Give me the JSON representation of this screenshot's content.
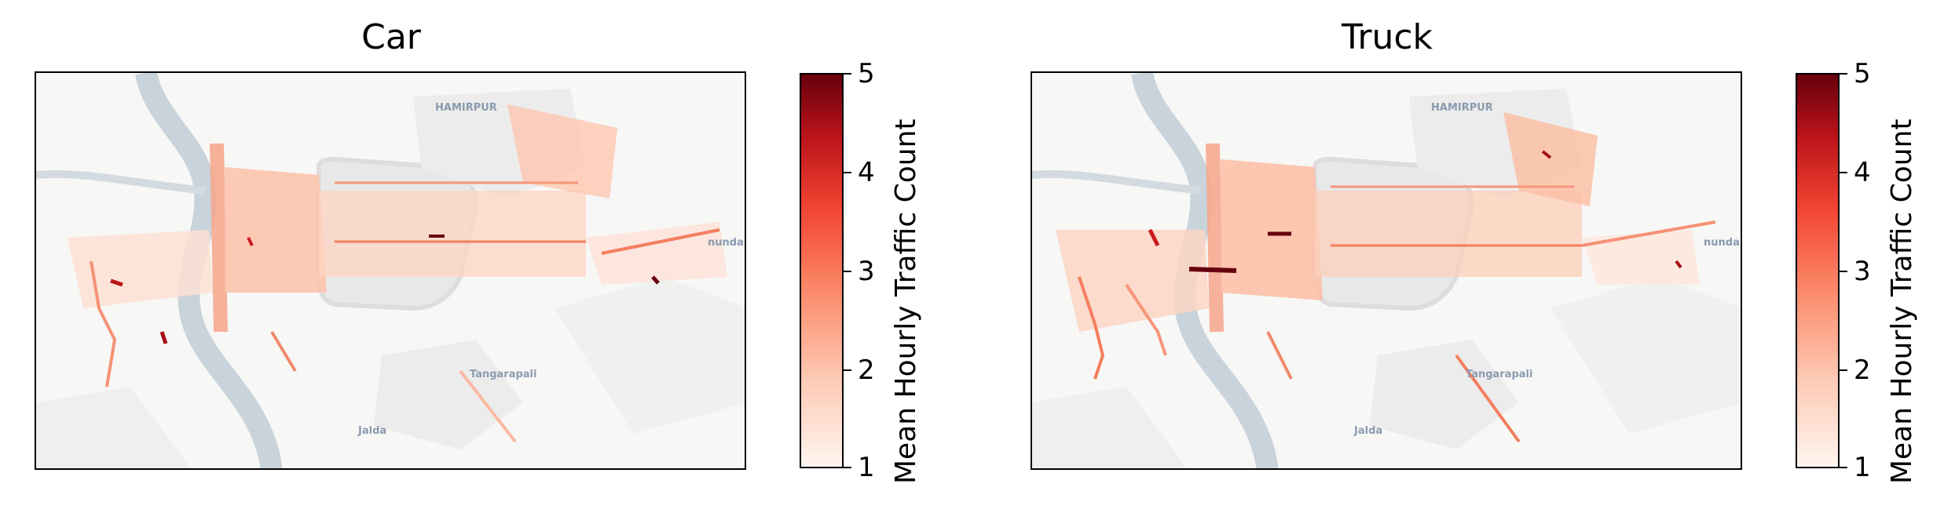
{
  "panels": [
    {
      "title": "Car",
      "place_labels": [
        "HAMIRPUR",
        "Tangarapali",
        "Jalda",
        "nunda"
      ]
    },
    {
      "title": "Truck",
      "place_labels": [
        "HAMIRPUR",
        "Tangarapali",
        "Jalda",
        "nunda"
      ]
    }
  ],
  "colorbar": {
    "label": "Mean Hourly Traffic Count",
    "ticks": [
      "5",
      "4",
      "3",
      "2",
      "1"
    ],
    "range": [
      1,
      5
    ],
    "colormap": "Reds",
    "colors": [
      "#fff5f0",
      "#fdcab5",
      "#fc8a6a",
      "#f14432",
      "#bc141a",
      "#67000d"
    ]
  },
  "colors": {
    "river": "#c9d3db",
    "land": "#f7f7f6",
    "urban": "#e8e8e8",
    "road_base": "#fbbba0"
  }
}
